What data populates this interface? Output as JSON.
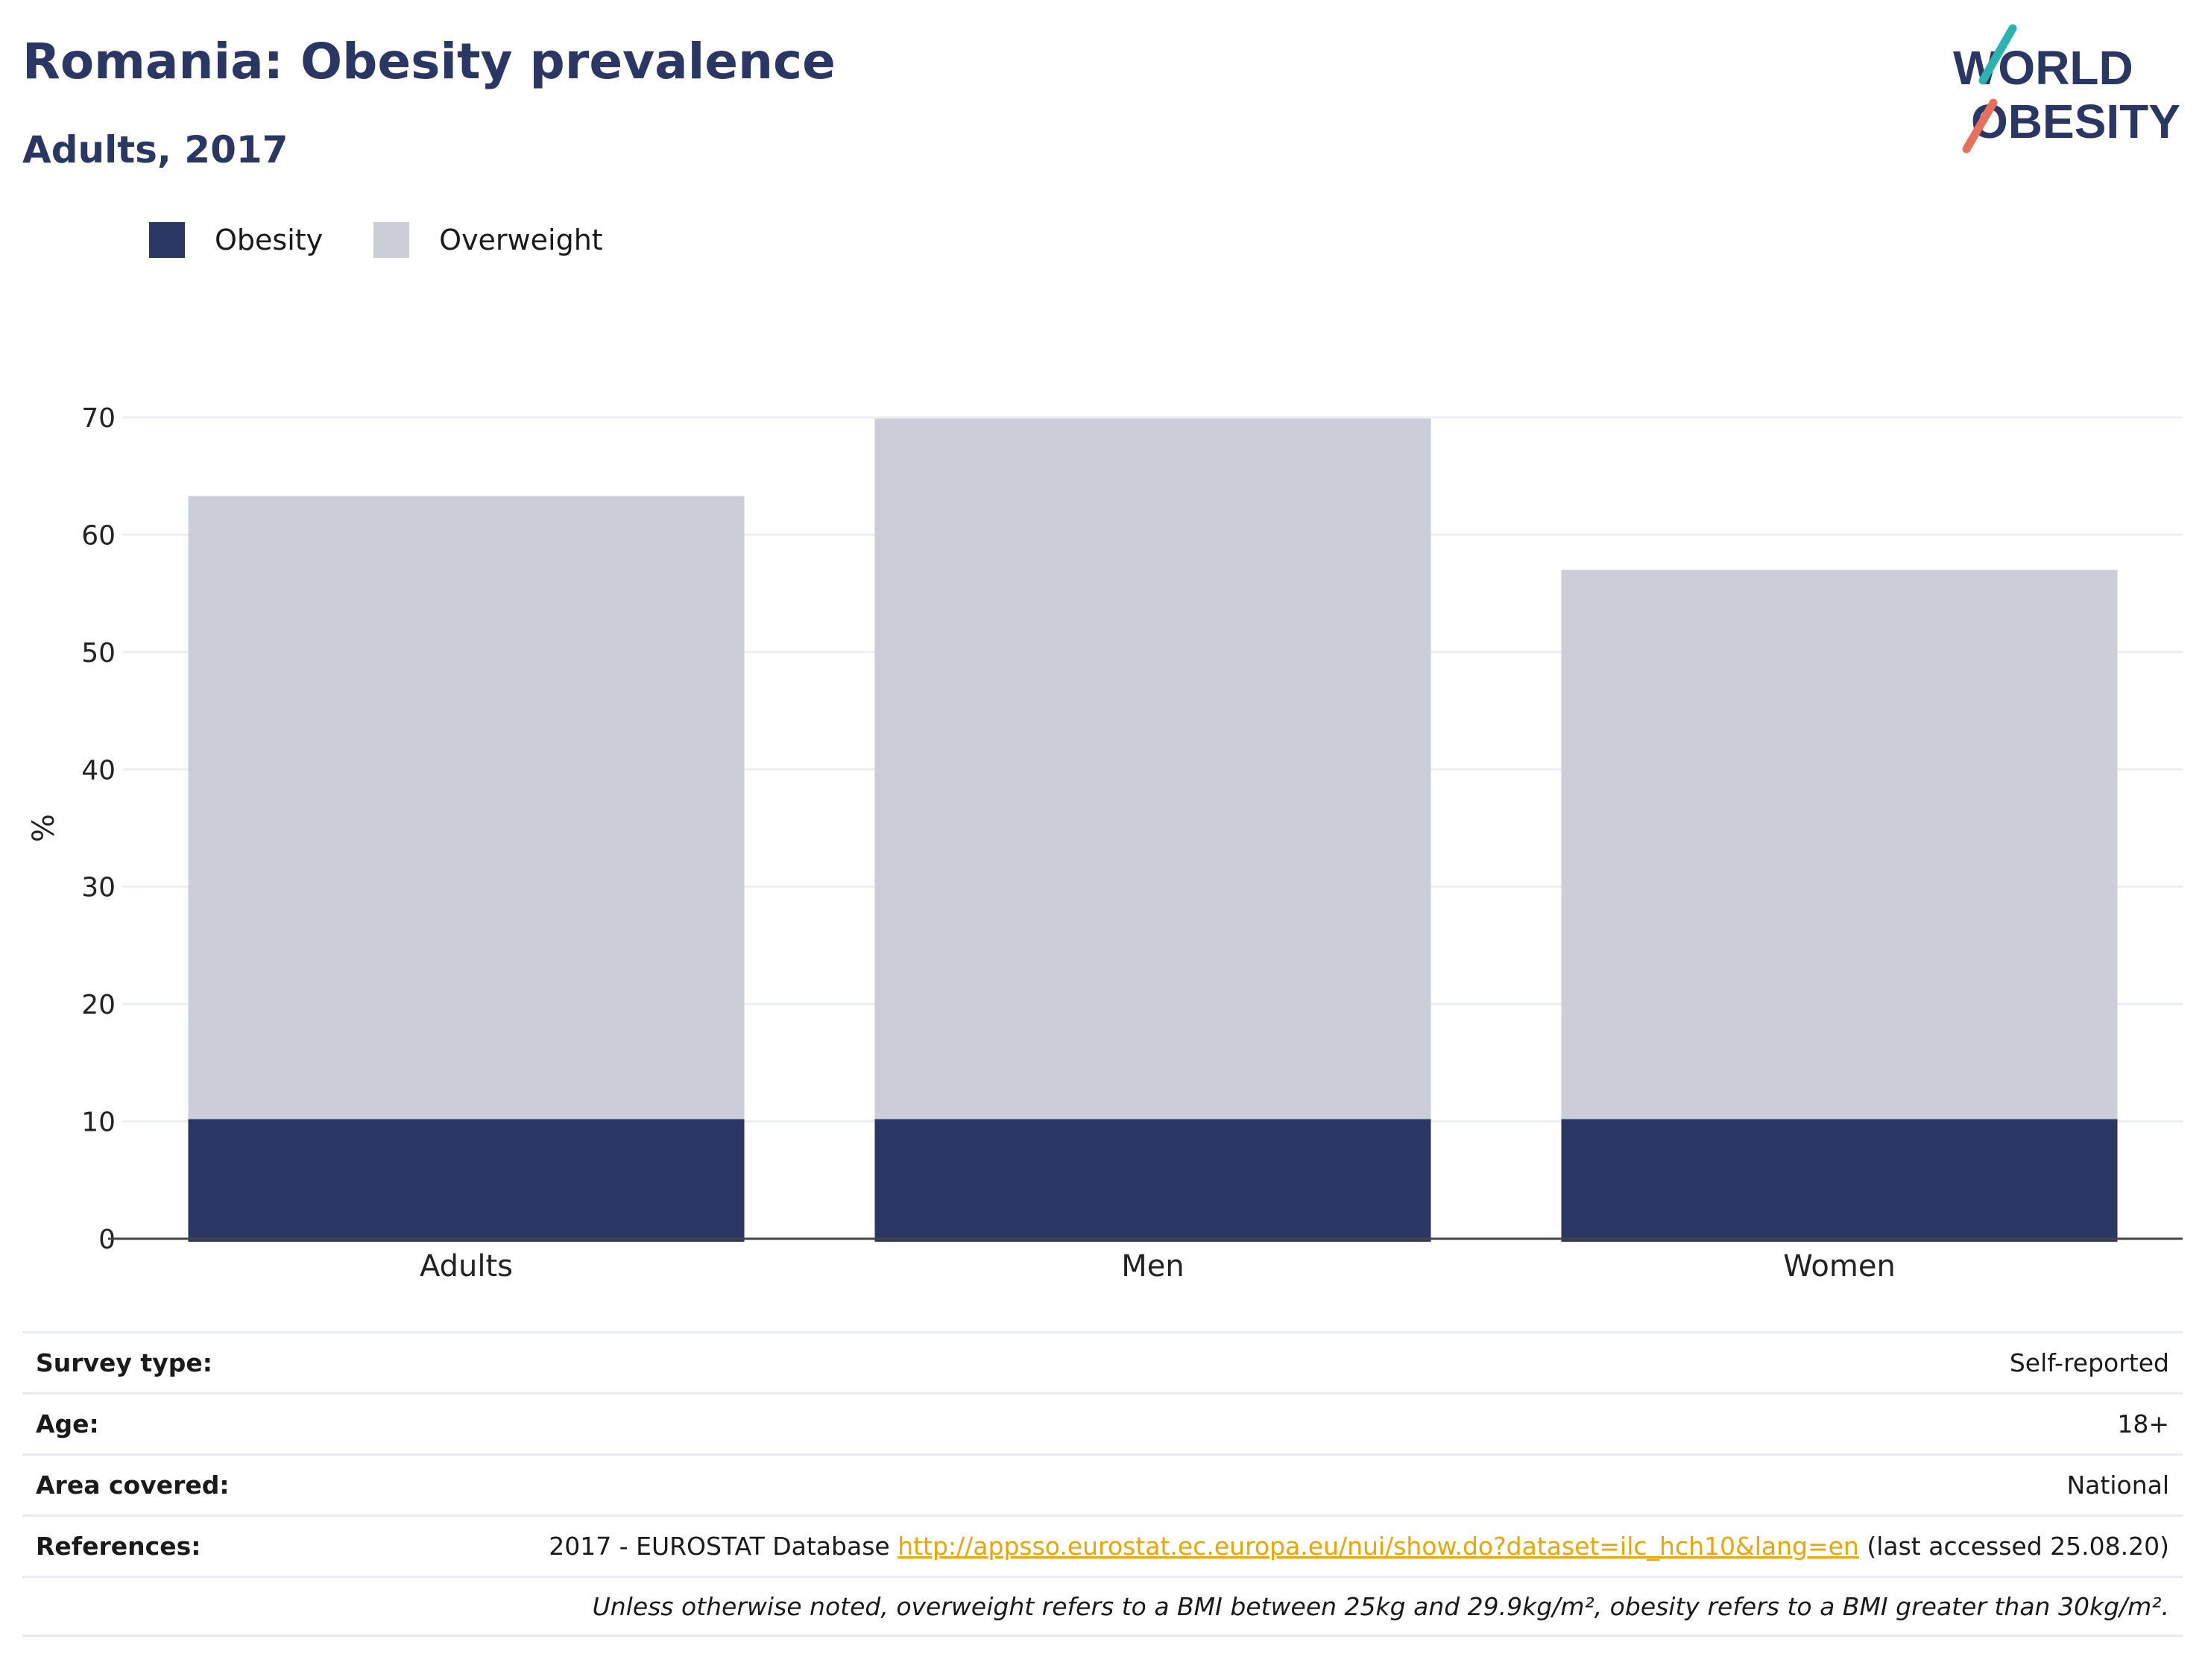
{
  "title": "Romania: Obesity prevalence",
  "subtitle": "Adults, 2017",
  "logo": {
    "line1": "WORLD",
    "line2": "OBESITY",
    "accent_colors": [
      "#2ab3b1",
      "#e8705a"
    ]
  },
  "legend": [
    {
      "label": "Obesity",
      "color": "#2a3663"
    },
    {
      "label": "Overweight",
      "color": "#cbcdd8"
    }
  ],
  "chart_data": {
    "type": "bar",
    "stacked": true,
    "categories": [
      "Adults",
      "Men",
      "Women"
    ],
    "series": [
      {
        "name": "Obesity",
        "values": [
          10.2,
          10.2,
          10.2
        ],
        "color": "#2a3663"
      },
      {
        "name": "Overweight",
        "values": [
          53.1,
          59.7,
          46.8
        ],
        "color": "#cbcdd8"
      }
    ],
    "ylabel": "%",
    "xlabel": "",
    "ylim": [
      0,
      70
    ],
    "yticks": [
      0,
      10,
      20,
      30,
      40,
      50,
      60,
      70
    ],
    "grid": true
  },
  "info": {
    "survey_label": "Survey type:",
    "survey_value": "Self-reported",
    "age_label": "Age:",
    "age_value": "18+",
    "area_label": "Area covered:",
    "area_value": "National",
    "ref_label": "References:",
    "ref_prefix": "2017 - EUROSTAT Database ",
    "ref_link": "http://appsso.eurostat.ec.europa.eu/nui/show.do?dataset=ilc_hch10&lang=en",
    "ref_suffix": " (last accessed 25.08.20)",
    "note": "Unless otherwise noted, overweight refers to a BMI between 25kg and 29.9kg/m², obesity refers to a BMI greater than 30kg/m²."
  }
}
